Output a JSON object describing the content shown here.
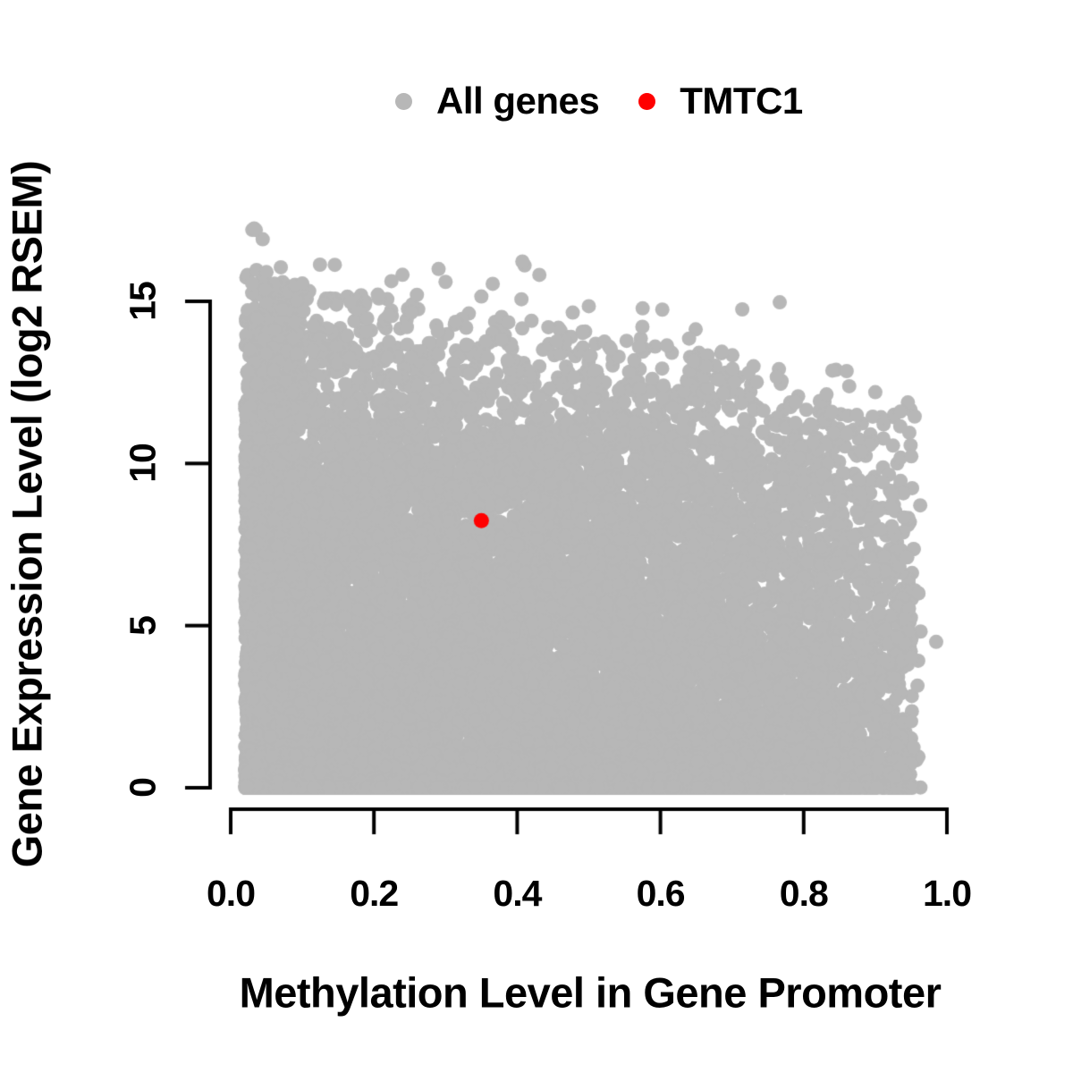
{
  "figure": {
    "background_color": "#ffffff",
    "text_color": "#000000",
    "axis_color": "#000000"
  },
  "legend": {
    "items": [
      {
        "name": "all-genes",
        "label": "All genes",
        "color": "#b7b7b7"
      },
      {
        "name": "tmtc1",
        "label": "TMTC1",
        "color": "#ff0000"
      }
    ]
  },
  "chart_data": {
    "type": "scatter",
    "title": "",
    "xlabel": "Methylation Level in Gene Promoter",
    "ylabel": "Gene Expression Level (log2 RSEM)",
    "grid": false,
    "legend_position": "top-center",
    "x_axis": {
      "min": 0.0,
      "max": 1.0,
      "ticks": [
        0.0,
        0.2,
        0.4,
        0.6,
        0.8,
        1.0
      ],
      "ticklabels": [
        "0.0",
        "0.2",
        "0.4",
        "0.6",
        "0.8",
        "1.0"
      ]
    },
    "y_axis": {
      "min": 0,
      "max": 15,
      "data_max_observed": 17.2,
      "ticks": [
        0,
        5,
        10,
        15
      ],
      "ticklabels": [
        "0",
        "5",
        "10",
        "15"
      ]
    },
    "series": [
      {
        "name": "All genes",
        "color": "#b7b7b7",
        "marker": "filled-circle",
        "marker_radius_px": 8,
        "representation": "procedural_dense_cloud",
        "seed": 1337,
        "n_body": 12000,
        "n_bottom_band": 2000,
        "n_edge_fuzz": 140,
        "n_high_outliers": 48,
        "x_min": 0.02,
        "x_max": 0.965,
        "x_power": 1.08,
        "left_column_frac": 0.13,
        "right_taper_start": 0.6,
        "right_taper_drop": 0.58,
        "right_cliff_x": 0.952,
        "right_cliff_keep": 0.12,
        "envelope_intercept": 14.85,
        "envelope_slope": -3.55,
        "notable_points": [
          [
            0.035,
            17.2
          ],
          [
            0.05,
            15.9
          ],
          [
            0.07,
            16.05
          ],
          [
            0.1,
            15.55
          ],
          [
            0.26,
            15.2
          ],
          [
            0.3,
            15.6
          ],
          [
            0.35,
            15.15
          ],
          [
            0.42,
            14.4
          ],
          [
            0.5,
            14.85
          ],
          [
            0.57,
            13.6
          ],
          [
            0.64,
            13.85
          ],
          [
            0.73,
            13.0
          ],
          [
            0.86,
            12.85
          ],
          [
            0.9,
            12.2
          ],
          [
            0.935,
            11.6
          ],
          [
            0.955,
            11.45
          ],
          [
            0.96,
            6.0
          ],
          [
            0.985,
            4.5
          ],
          [
            0.95,
            2.05
          ]
        ]
      },
      {
        "name": "TMTC1",
        "color": "#ff0000",
        "marker": "filled-circle",
        "marker_radius_px": 8.5,
        "points": [
          [
            0.35,
            8.24
          ]
        ]
      }
    ],
    "highlight": {
      "gene": "TMTC1",
      "x": 0.35,
      "y": 8.24
    }
  }
}
